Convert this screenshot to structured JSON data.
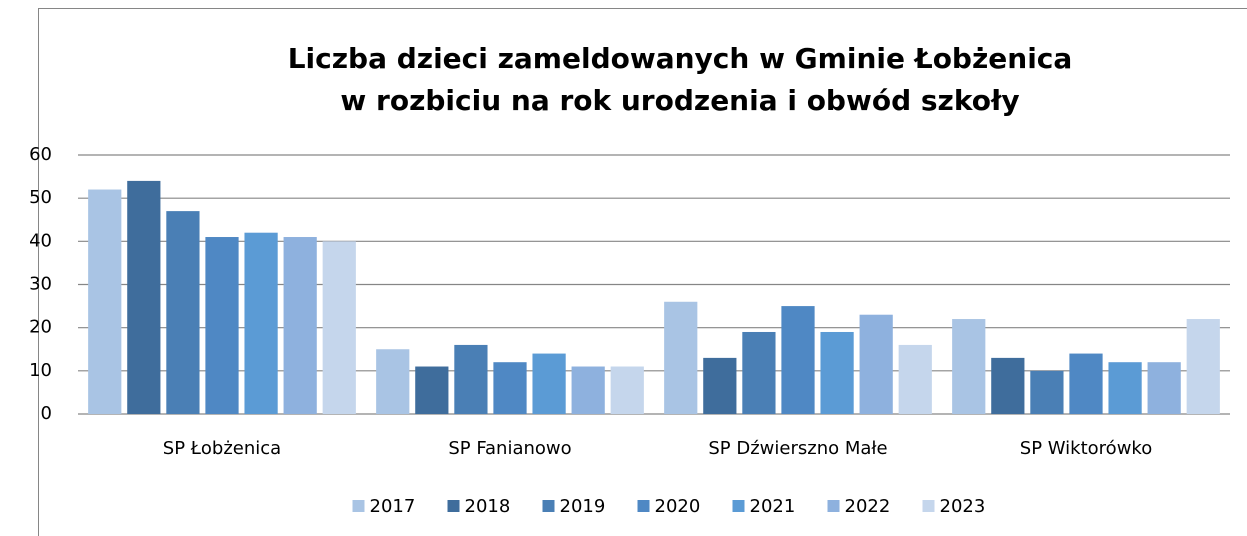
{
  "chart_data": {
    "type": "bar",
    "title": [
      "Liczba dzieci zameldowanych w Gminie Łobżenica",
      "w rozbiciu na rok urodzenia i obwód szkoły"
    ],
    "categories": [
      "SP Łobżenica",
      "SP Fanianowo",
      "SP Dźwierszno Małe",
      "SP Wiktorówko"
    ],
    "series": [
      {
        "name": "2017",
        "color": "#a9c4e4",
        "values": [
          52,
          15,
          26,
          22
        ]
      },
      {
        "name": "2018",
        "color": "#3f6d9c",
        "values": [
          54,
          11,
          13,
          13
        ]
      },
      {
        "name": "2019",
        "color": "#4a7fb5",
        "values": [
          47,
          16,
          19,
          10
        ]
      },
      {
        "name": "2020",
        "color": "#4f88c4",
        "values": [
          41,
          12,
          25,
          14
        ]
      },
      {
        "name": "2021",
        "color": "#5b9bd5",
        "values": [
          42,
          14,
          19,
          12
        ]
      },
      {
        "name": "2022",
        "color": "#8eb1de",
        "values": [
          41,
          11,
          23,
          12
        ]
      },
      {
        "name": "2023",
        "color": "#c5d6ec",
        "values": [
          40,
          11,
          16,
          22
        ]
      }
    ],
    "ylim": [
      0,
      60
    ],
    "yticks": [
      0,
      10,
      20,
      30,
      40,
      50,
      60
    ],
    "grid": true,
    "legend": "bottom"
  }
}
